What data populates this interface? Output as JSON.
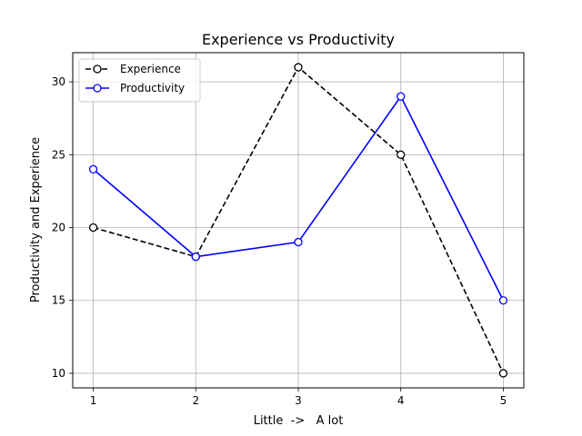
{
  "chart_data": {
    "type": "line",
    "title": "Experience vs Productivity",
    "xlabel": "Little  ->   A lot",
    "ylabel": "Productivity and Experience",
    "x": [
      1,
      2,
      3,
      4,
      5
    ],
    "xticks": [
      "1",
      "2",
      "3",
      "4",
      "5"
    ],
    "yticks": [
      "10",
      "15",
      "20",
      "25",
      "30"
    ],
    "xlim": [
      0.8,
      5.2
    ],
    "ylim": [
      9,
      32
    ],
    "grid": true,
    "legend_position": "top-left",
    "series": [
      {
        "name": "Experience",
        "values": [
          20,
          18,
          31,
          25,
          10
        ],
        "color": "#000000",
        "linestyle": "dashed",
        "marker": "circle-open"
      },
      {
        "name": "Productivity",
        "values": [
          24,
          18,
          19,
          29,
          15
        ],
        "color": "#0000ff",
        "linestyle": "solid",
        "marker": "circle-open"
      }
    ]
  }
}
